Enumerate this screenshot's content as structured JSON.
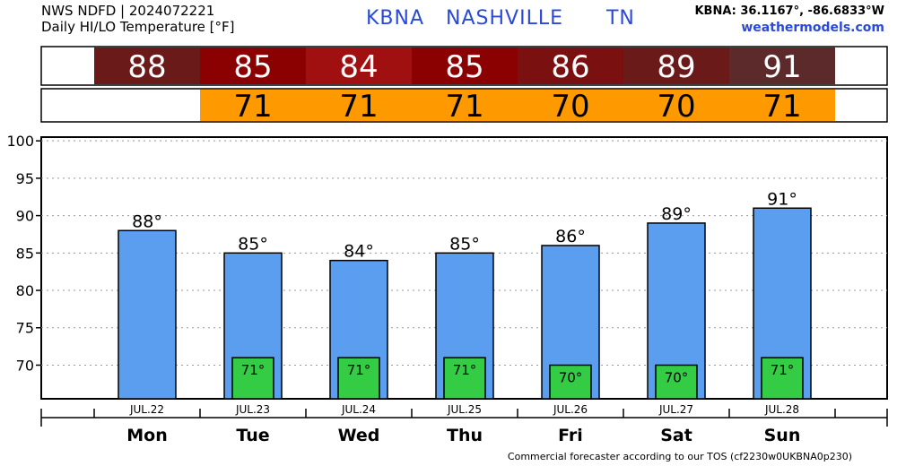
{
  "header": {
    "source": "NWS NDFD | 2024072221",
    "subtitle": "Daily HI/LO Temperature [°F]",
    "station_id": "KBNA",
    "city": "NASHVILLE",
    "state": "TN",
    "coords": "KBNA: 36.1167°, -86.6833°W",
    "site": "weathermodels.com"
  },
  "footer": "Commercial forecaster according to our TOS (cf2230w0UKBNA0p230)",
  "colors": {
    "hi_bar": "#5b9ef0",
    "lo_bar": "#33cc44",
    "lo_strip": "#ff9900",
    "hi_strip": [
      "#6b1a1a",
      "#8b0000",
      "#a01010",
      "#8b0000",
      "#7a1010",
      "#6b1a1a",
      "#5c2a2a"
    ]
  },
  "chart_data": {
    "type": "bar",
    "categories": [
      "Mon",
      "Tue",
      "Wed",
      "Thu",
      "Fri",
      "Sat",
      "Sun"
    ],
    "dates": [
      "JUL.22",
      "JUL.23",
      "JUL.24",
      "JUL.25",
      "JUL.26",
      "JUL.27",
      "JUL.28"
    ],
    "series": [
      {
        "values": [
          88,
          85,
          84,
          85,
          86,
          89,
          91
        ]
      },
      {
        "values": [
          null,
          71,
          71,
          71,
          70,
          70,
          71
        ]
      }
    ],
    "hi_labels": [
      "88°",
      "85°",
      "84°",
      "85°",
      "86°",
      "89°",
      "91°"
    ],
    "lo_labels": [
      "",
      "71°",
      "71°",
      "71°",
      "70°",
      "70°",
      "71°"
    ],
    "hi_strip_labels": [
      "88",
      "85",
      "84",
      "85",
      "86",
      "89",
      "91"
    ],
    "lo_strip_labels": [
      "",
      "71",
      "71",
      "71",
      "70",
      "70",
      "71"
    ],
    "yticks": [
      "70",
      "75",
      "80",
      "85",
      "90",
      "95",
      "100"
    ],
    "ylim": [
      65.5,
      100.5
    ],
    "grid": true,
    "xlabel": "",
    "ylabel": ""
  }
}
